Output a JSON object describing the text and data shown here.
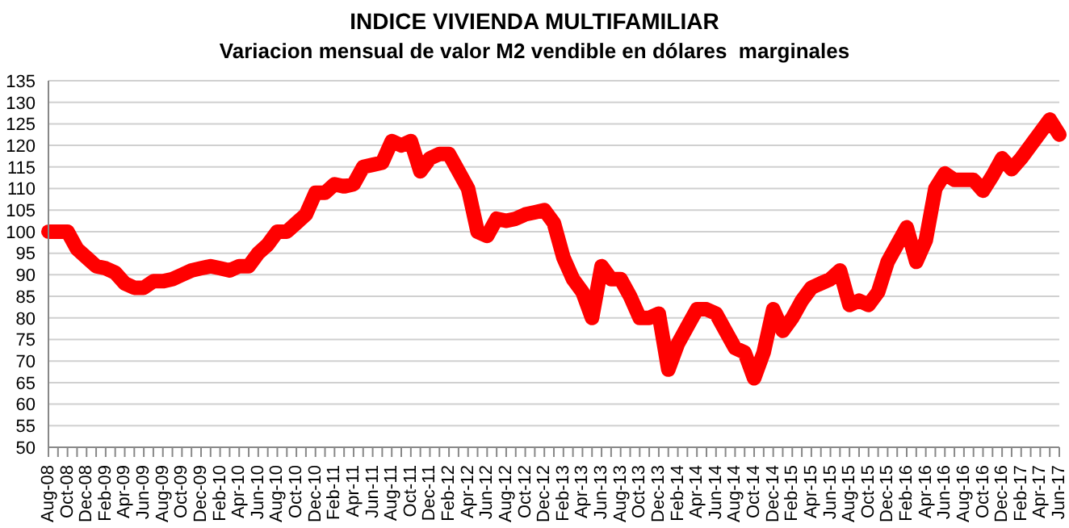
{
  "chart_data": {
    "type": "line",
    "title": "INDICE VIVIENDA MULTIFAMILIAR",
    "subtitle": "Variacion mensual de valor M2 vendible en dólares  marginales",
    "categories": [
      "Aug-08",
      null,
      "Oct-08",
      null,
      "Dec-08",
      null,
      "Feb-09",
      null,
      "Apr-09",
      null,
      "Jun-09",
      null,
      "Aug-09",
      null,
      "Oct-09",
      null,
      "Dec-09",
      null,
      "Feb-10",
      null,
      "Apr-10",
      null,
      "Jun-10",
      null,
      "Aug-10",
      null,
      "Oct-10",
      null,
      "Dec-10",
      null,
      "Feb-11",
      null,
      "Apr-11",
      null,
      "Jun-11",
      null,
      "Aug-11",
      null,
      "Oct-11",
      null,
      "Dec-11",
      null,
      "Feb-12",
      null,
      "Apr-12",
      null,
      "Jun-12",
      null,
      "Aug-12",
      null,
      "Oct-12",
      null,
      "Dec-12",
      null,
      "Feb-13",
      null,
      "Apr-13",
      null,
      "Jun-13",
      null,
      "Aug-13",
      null,
      "Oct-13",
      null,
      "Dec-13",
      null,
      "Feb-14",
      null,
      "Apr-14",
      null,
      "Jun-14",
      null,
      "Aug-14",
      null,
      "Oct-14",
      null,
      "Dec-14",
      null,
      "Feb-15",
      null,
      "Apr-15",
      null,
      "Jun-15",
      null,
      "Aug-15",
      null,
      "Oct-15",
      null,
      "Dec-15",
      null,
      "Feb-16",
      null,
      "Apr-16",
      null,
      "Jun-16",
      null,
      "Aug-16",
      null,
      "Oct-16",
      null,
      "Dec-16",
      null,
      "Feb-17",
      null,
      "Apr-17",
      null,
      "Jun-17"
    ],
    "series": [
      {
        "color": "#ff0000",
        "values": [
          100,
          100,
          100,
          96,
          94,
          92,
          91.5,
          90.5,
          88,
          87,
          87,
          88.5,
          88.5,
          89,
          90,
          91,
          91.5,
          92,
          91.5,
          91,
          92,
          92,
          95,
          97,
          100,
          100,
          102,
          104,
          109,
          109,
          111,
          110.5,
          111,
          115,
          115.5,
          116,
          121,
          120,
          121,
          114,
          117,
          118,
          118,
          114,
          110,
          100,
          99,
          103,
          102.5,
          103,
          104,
          104.5,
          105,
          102,
          94,
          89,
          86,
          80,
          92,
          89,
          89,
          85,
          80,
          80,
          81,
          68,
          74,
          78,
          82,
          82,
          81,
          77,
          73,
          72,
          66,
          72,
          82,
          77,
          80,
          84,
          87,
          88,
          89,
          91,
          83,
          84,
          83,
          86,
          93,
          97,
          101,
          93,
          98,
          110,
          113.5,
          112,
          112,
          112,
          109.5,
          113,
          117,
          114.5,
          117,
          120,
          123,
          126,
          122.5
        ]
      }
    ],
    "ylim": [
      50,
      135
    ],
    "yticks": [
      50,
      55,
      60,
      65,
      70,
      75,
      80,
      85,
      90,
      95,
      100,
      105,
      110,
      115,
      120,
      125,
      130,
      135
    ],
    "grid": "y",
    "legend": false,
    "marker": "none",
    "line_style": "solid"
  }
}
